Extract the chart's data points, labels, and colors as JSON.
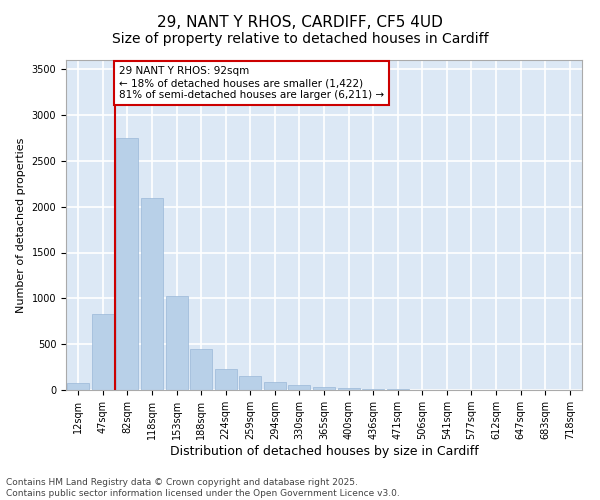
{
  "title1": "29, NANT Y RHOS, CARDIFF, CF5 4UD",
  "title2": "Size of property relative to detached houses in Cardiff",
  "xlabel": "Distribution of detached houses by size in Cardiff",
  "ylabel": "Number of detached properties",
  "categories": [
    "12sqm",
    "47sqm",
    "82sqm",
    "118sqm",
    "153sqm",
    "188sqm",
    "224sqm",
    "259sqm",
    "294sqm",
    "330sqm",
    "365sqm",
    "400sqm",
    "436sqm",
    "471sqm",
    "506sqm",
    "541sqm",
    "577sqm",
    "612sqm",
    "647sqm",
    "683sqm",
    "718sqm"
  ],
  "values": [
    75,
    830,
    2750,
    2100,
    1030,
    450,
    230,
    150,
    90,
    60,
    30,
    20,
    10,
    8,
    4,
    3,
    2,
    1,
    1,
    1,
    1
  ],
  "bar_color": "#b8d0e8",
  "bar_edge_color": "#9ab8d8",
  "vline_color": "#cc0000",
  "vline_x_index": 2,
  "annotation_text": "29 NANT Y RHOS: 92sqm\n← 18% of detached houses are smaller (1,422)\n81% of semi-detached houses are larger (6,211) →",
  "annotation_box_color": "#ffffff",
  "annotation_box_edge": "#cc0000",
  "ylim": [
    0,
    3600
  ],
  "yticks": [
    0,
    500,
    1000,
    1500,
    2000,
    2500,
    3000,
    3500
  ],
  "footer1": "Contains HM Land Registry data © Crown copyright and database right 2025.",
  "footer2": "Contains public sector information licensed under the Open Government Licence v3.0.",
  "fig_bg_color": "#ffffff",
  "ax_bg_color": "#dce8f5",
  "grid_color": "#ffffff",
  "title1_fontsize": 11,
  "title2_fontsize": 10,
  "xlabel_fontsize": 9,
  "ylabel_fontsize": 8,
  "tick_fontsize": 7,
  "annot_fontsize": 7.5,
  "footer_fontsize": 6.5
}
